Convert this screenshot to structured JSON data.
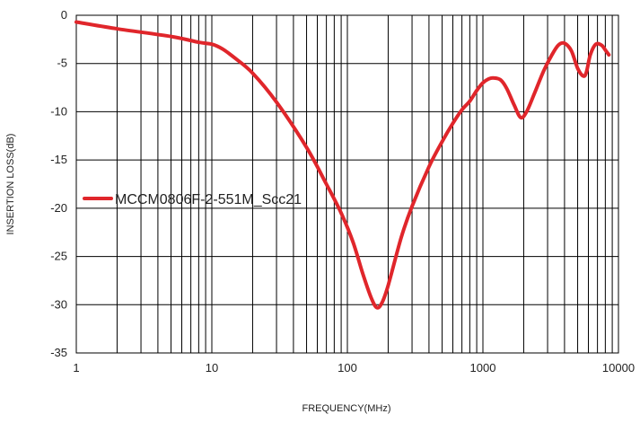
{
  "chart_data": {
    "type": "line",
    "title": "",
    "xlabel": "FREQUENCY(MHz)",
    "ylabel": "INSERTION LOSS(dB)",
    "xscale": "log",
    "xlim": [
      1,
      10000
    ],
    "ylim": [
      -35,
      0
    ],
    "x_ticks": [
      1,
      10,
      100,
      1000,
      10000
    ],
    "x_tick_labels": [
      "1",
      "10",
      "100",
      "1000",
      "10000"
    ],
    "y_ticks": [
      0,
      -5,
      -10,
      -15,
      -20,
      -25,
      -30,
      -35
    ],
    "y_tick_labels": [
      "0",
      "-5",
      "-10",
      "-15",
      "-20",
      "-25",
      "-30",
      "-35"
    ],
    "grid": true,
    "legend_position": "center-left",
    "series": [
      {
        "name": "MCCM0806F-2-551M_Scc21",
        "color": "#e0262b",
        "x": [
          1,
          2,
          5,
          8,
          10,
          12,
          15,
          20,
          30,
          50,
          70,
          90,
          110,
          130,
          150,
          165,
          180,
          200,
          250,
          300,
          400,
          500,
          600,
          700,
          800,
          900,
          1000,
          1100,
          1200,
          1350,
          1500,
          1700,
          1900,
          2100,
          2400,
          2800,
          3200,
          3600,
          4000,
          4500,
          5000,
          5500,
          5800,
          6200,
          6800,
          7500,
          8000,
          8500
        ],
        "y": [
          -0.7,
          -1.4,
          -2.2,
          -2.8,
          -3.0,
          -3.5,
          -4.5,
          -6.0,
          -9.0,
          -13.7,
          -17.5,
          -20.5,
          -23.5,
          -26.8,
          -29.3,
          -30.3,
          -29.8,
          -28.0,
          -23.0,
          -19.8,
          -15.7,
          -13.1,
          -11.2,
          -9.8,
          -8.9,
          -7.8,
          -7.0,
          -6.6,
          -6.5,
          -6.7,
          -7.6,
          -9.3,
          -10.6,
          -10.0,
          -8.1,
          -5.8,
          -4.2,
          -3.1,
          -2.9,
          -3.7,
          -5.5,
          -6.3,
          -5.9,
          -4.1,
          -3.0,
          -3.1,
          -3.6,
          -4.1
        ]
      }
    ]
  }
}
